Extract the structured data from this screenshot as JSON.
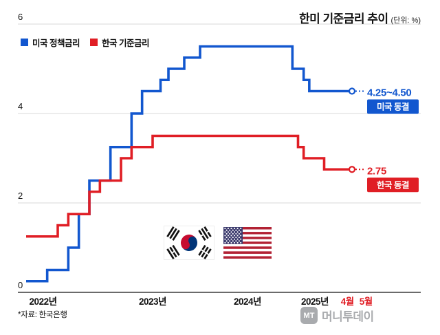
{
  "title": {
    "main": "한미 기준금리 추이",
    "unit": "(단위: %)"
  },
  "legend": [
    {
      "label": "미국 정책금리",
      "color": "#1257cf"
    },
    {
      "label": "한국 기준금리",
      "color": "#e01e25"
    }
  ],
  "footnote": "*자료: 한국은행",
  "watermark": {
    "logo": "MT",
    "text": "머니투데이"
  },
  "chart_data": {
    "type": "line",
    "step": "after",
    "title": "한미 기준금리 추이",
    "unit": "%",
    "ylim": [
      0,
      6
    ],
    "yticks": [
      0,
      2,
      4,
      6
    ],
    "grid": "horizontal",
    "legend_position": "top-left",
    "x_unit": "months_since_2022_01",
    "xticks": [
      {
        "label": "2022년",
        "month": 1.6,
        "color": "#111111"
      },
      {
        "label": "2023년",
        "month": 12,
        "color": "#111111"
      },
      {
        "label": "2024년",
        "month": 24,
        "color": "#111111"
      },
      {
        "label": "2025년",
        "month": 36,
        "color": "#111111"
      },
      {
        "label": "4월",
        "month": 39.5,
        "color": "#e01e25"
      },
      {
        "label": "5월",
        "month": 41.5,
        "color": "#e01e25"
      }
    ],
    "series": [
      {
        "name": "미국 정책금리",
        "color": "#1257cf",
        "end_label": "4.25~4.50",
        "end_badge": "미국 동결",
        "points": [
          [
            0,
            0.25
          ],
          [
            2,
            0.5
          ],
          [
            4,
            1.0
          ],
          [
            5,
            1.75
          ],
          [
            6,
            2.5
          ],
          [
            8,
            3.25
          ],
          [
            10,
            4.0
          ],
          [
            11,
            4.5
          ],
          [
            13,
            4.75
          ],
          [
            14,
            5.0
          ],
          [
            16,
            5.25
          ],
          [
            18,
            5.5
          ],
          [
            32,
            5.0
          ],
          [
            34,
            4.75
          ],
          [
            35,
            4.5
          ],
          [
            40,
            4.5
          ]
        ]
      },
      {
        "name": "한국 기준금리",
        "color": "#e01e25",
        "end_label": "2.75",
        "end_badge": "한국 동결",
        "points": [
          [
            0,
            1.25
          ],
          [
            3,
            1.5
          ],
          [
            4,
            1.75
          ],
          [
            6,
            2.25
          ],
          [
            7,
            2.5
          ],
          [
            9,
            3.0
          ],
          [
            10,
            3.25
          ],
          [
            12,
            3.5
          ],
          [
            33,
            3.25
          ],
          [
            34,
            3.0
          ],
          [
            37,
            2.75
          ],
          [
            40,
            2.75
          ]
        ]
      }
    ]
  }
}
